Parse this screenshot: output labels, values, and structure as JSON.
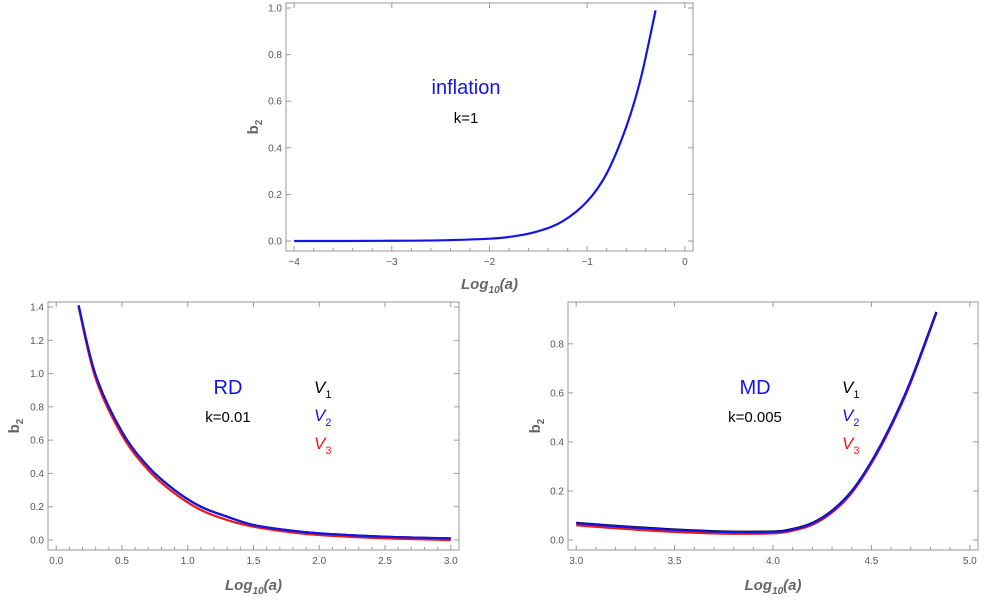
{
  "colors": {
    "black": "#000000",
    "blue": "#1414e6",
    "red": "#e61b1b"
  },
  "chart_data": [
    {
      "type": "line",
      "xlabel": "Log10(a)",
      "ylabel": "b2",
      "xlim": [
        -4,
        0
      ],
      "ylim": [
        0,
        1.0
      ],
      "x_ticks": [
        "−4",
        "−3",
        "−2",
        "−1",
        "0"
      ],
      "y_ticks": [
        "0.0",
        "0.2",
        "0.4",
        "0.6",
        "0.8",
        "1.0"
      ],
      "annotations": [
        "inflation",
        "k=1"
      ],
      "series": [
        {
          "color": "blue",
          "x": [
            -4.0,
            -3.5,
            -3.0,
            -2.5,
            -2.0,
            -1.75,
            -1.5,
            -1.25,
            -1.0,
            -0.8,
            -0.6,
            -0.45,
            -0.3
          ],
          "y": [
            0.0,
            0.0,
            0.001,
            0.003,
            0.01,
            0.02,
            0.042,
            0.085,
            0.17,
            0.29,
            0.49,
            0.7,
            0.99
          ]
        }
      ]
    },
    {
      "type": "line",
      "xlabel": "Log10(a)",
      "ylabel": "b2",
      "xlim": [
        0,
        3.0
      ],
      "ylim": [
        0,
        1.4
      ],
      "x_ticks": [
        "0.0",
        "0.5",
        "1.0",
        "1.5",
        "2.0",
        "2.5",
        "3.0"
      ],
      "y_ticks": [
        "0.0",
        "0.2",
        "0.4",
        "0.6",
        "0.8",
        "1.0",
        "1.2",
        "1.4"
      ],
      "annotations": [
        "RD",
        "k=0.01"
      ],
      "legend": [
        "V1",
        "V2",
        "V3"
      ],
      "series": [
        {
          "name": "V1",
          "color": "black",
          "x": [
            0.17,
            0.3,
            0.5,
            0.7,
            0.9,
            1.1,
            1.3,
            1.5,
            1.75,
            2.0,
            2.5,
            3.0
          ],
          "y": [
            1.41,
            0.99,
            0.65,
            0.44,
            0.3,
            0.2,
            0.14,
            0.09,
            0.06,
            0.04,
            0.02,
            0.01
          ]
        },
        {
          "name": "V2",
          "color": "blue",
          "x": [
            0.17,
            0.3,
            0.5,
            0.7,
            0.9,
            1.1,
            1.3,
            1.5,
            1.75,
            2.0,
            2.5,
            3.0
          ],
          "y": [
            1.41,
            0.99,
            0.65,
            0.44,
            0.3,
            0.2,
            0.14,
            0.09,
            0.06,
            0.04,
            0.02,
            0.01
          ]
        },
        {
          "name": "V3",
          "color": "red",
          "x": [
            0.17,
            0.3,
            0.5,
            0.7,
            0.9,
            1.1,
            1.3,
            1.5,
            1.75,
            2.0,
            2.5,
            3.0
          ],
          "y": [
            1.4,
            0.97,
            0.63,
            0.42,
            0.28,
            0.18,
            0.12,
            0.08,
            0.05,
            0.03,
            0.01,
            0.0
          ]
        }
      ]
    },
    {
      "type": "line",
      "xlabel": "Log10(a)",
      "ylabel": "b2",
      "xlim": [
        3.0,
        5.0
      ],
      "ylim": [
        0,
        0.95
      ],
      "x_ticks": [
        "3.0",
        "3.5",
        "4.0",
        "4.5",
        "5.0"
      ],
      "y_ticks": [
        "0.0",
        "0.2",
        "0.4",
        "0.6",
        "0.8"
      ],
      "annotations": [
        "MD",
        "k=0.005"
      ],
      "legend": [
        "V1",
        "V2",
        "V3"
      ],
      "series": [
        {
          "name": "V1",
          "color": "black",
          "x": [
            3.0,
            3.25,
            3.5,
            3.75,
            4.0,
            4.1,
            4.2,
            4.3,
            4.4,
            4.5,
            4.6,
            4.7,
            4.83
          ],
          "y": [
            0.07,
            0.055,
            0.043,
            0.035,
            0.035,
            0.045,
            0.07,
            0.12,
            0.2,
            0.32,
            0.47,
            0.65,
            0.93
          ]
        },
        {
          "name": "V2",
          "color": "blue",
          "x": [
            3.0,
            3.25,
            3.5,
            3.75,
            4.0,
            4.1,
            4.2,
            4.3,
            4.4,
            4.5,
            4.6,
            4.7,
            4.83
          ],
          "y": [
            0.068,
            0.053,
            0.041,
            0.033,
            0.033,
            0.043,
            0.068,
            0.118,
            0.198,
            0.318,
            0.468,
            0.648,
            0.928
          ]
        },
        {
          "name": "V3",
          "color": "red",
          "x": [
            3.0,
            3.25,
            3.5,
            3.75,
            4.0,
            4.1,
            4.2,
            4.3,
            4.4,
            4.5,
            4.6,
            4.7,
            4.83
          ],
          "y": [
            0.06,
            0.045,
            0.033,
            0.026,
            0.027,
            0.038,
            0.062,
            0.112,
            0.192,
            0.312,
            0.462,
            0.642,
            0.925
          ]
        }
      ]
    }
  ]
}
